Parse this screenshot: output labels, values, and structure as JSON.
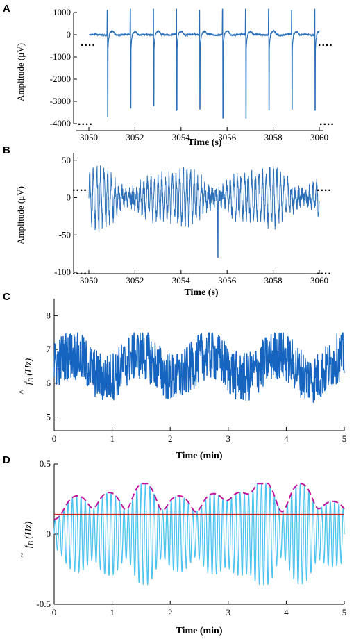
{
  "chart_data": [
    {
      "panel": "A",
      "type": "line",
      "xlabel": "Time (s)",
      "ylabel": "Amplitude (μV)",
      "xlim": [
        3050,
        3060
      ],
      "ylim": [
        -4000,
        1000
      ],
      "xticks": [
        3050,
        3052,
        3054,
        3056,
        3058,
        3060
      ],
      "yticks": [
        -4000,
        -3000,
        -2000,
        -1000,
        0,
        1000
      ],
      "spike_times": [
        3050.8,
        3051.8,
        3052.8,
        3053.8,
        3054.8,
        3055.8,
        3056.8,
        3057.8,
        3058.8,
        3059.8
      ],
      "spike_peaks": [
        1100,
        1150,
        1150,
        1150,
        1100,
        1150,
        1150,
        1150,
        1100,
        1150
      ],
      "spike_troughs": [
        -3700,
        -3300,
        -3200,
        -3400,
        -3350,
        -3750,
        -3750,
        -3400,
        -3350,
        -3400
      ],
      "color": "#2a6fb8",
      "continuation_marks": "...."
    },
    {
      "panel": "B",
      "type": "line",
      "xlabel": "Time (s)",
      "ylabel": "Amplitude (μV)",
      "xlim": [
        3050,
        3060
      ],
      "ylim": [
        -100,
        60
      ],
      "xticks": [
        3050,
        3052,
        3054,
        3056,
        3058,
        3060
      ],
      "yticks": [
        -100,
        -50,
        0,
        50
      ],
      "peak_min": -80,
      "peak_max": 52,
      "color": "#2a6fb8",
      "continuation_marks": "...."
    },
    {
      "panel": "C",
      "type": "line",
      "xlabel": "Time (min)",
      "ylabel": "f̂_B (Hz)",
      "xlim": [
        0,
        5
      ],
      "ylim": [
        4.6,
        8.5
      ],
      "xticks": [
        0,
        1,
        2,
        3,
        4,
        5
      ],
      "yticks": [
        5,
        6,
        7,
        8
      ],
      "mean": 6.5,
      "range": [
        5.1,
        7.5
      ],
      "color": "#1565c0"
    },
    {
      "panel": "D",
      "type": "line",
      "xlabel": "Time (min)",
      "ylabel": "f̃_B (Hz)",
      "xlim": [
        0,
        5
      ],
      "ylim": [
        -0.5,
        0.5
      ],
      "xticks": [
        0,
        1,
        2,
        3,
        4,
        5
      ],
      "yticks": [
        -0.5,
        0,
        0.5
      ],
      "threshold": 0.14,
      "envelope_peaks": [
        {
          "x": 0.4,
          "y": 0.22
        },
        {
          "x": 0.95,
          "y": 0.25
        },
        {
          "x": 1.55,
          "y": 0.34
        },
        {
          "x": 2.15,
          "y": 0.22
        },
        {
          "x": 2.75,
          "y": 0.24
        },
        {
          "x": 3.2,
          "y": 0.25
        },
        {
          "x": 3.6,
          "y": 0.36
        },
        {
          "x": 4.25,
          "y": 0.33
        },
        {
          "x": 4.8,
          "y": 0.17
        }
      ],
      "series": [
        {
          "color": "#4dc3f0"
        },
        {
          "color": "#c0169e"
        },
        {
          "color": "#d32222"
        }
      ]
    }
  ],
  "labels": {
    "A": "A",
    "B": "B",
    "C": "C",
    "D": "D",
    "xA": "Time (s)",
    "xB": "Time (s)",
    "xC": "Time (min)",
    "xD": "Time (min)",
    "yA": "Amplitude (μV)",
    "yB": "Amplitude (μV)",
    "dots": "...."
  }
}
